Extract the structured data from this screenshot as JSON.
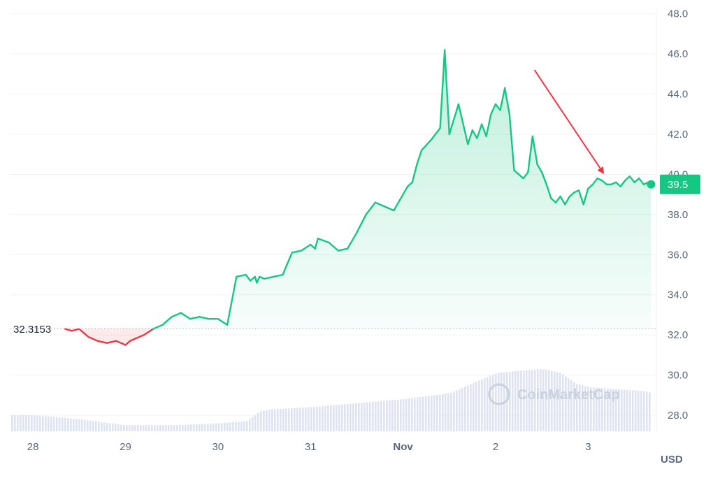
{
  "chart_data": {
    "type": "line",
    "currency_label": "USD",
    "watermark": "CoinMarketCap",
    "y_ticks": [
      "48.0",
      "46.0",
      "44.0",
      "42.0",
      "40.0",
      "38.0",
      "36.0",
      "34.0",
      "32.0",
      "30.0",
      "28.0"
    ],
    "y_tick_values": [
      48,
      46,
      44,
      42,
      40,
      38,
      36,
      34,
      32,
      30,
      28
    ],
    "x_ticks": [
      {
        "label": "28",
        "bold": false,
        "day": 0
      },
      {
        "label": "29",
        "bold": false,
        "day": 1
      },
      {
        "label": "30",
        "bold": false,
        "day": 2
      },
      {
        "label": "31",
        "bold": false,
        "day": 3
      },
      {
        "label": "Nov",
        "bold": true,
        "day": 4
      },
      {
        "label": "2",
        "bold": false,
        "day": 5
      },
      {
        "label": "3",
        "bold": false,
        "day": 6
      }
    ],
    "ylim": [
      27.2,
      48.2
    ],
    "xlim": [
      -0.25,
      6.73
    ],
    "baseline_value": 32.3153,
    "baseline_label": "32.3153",
    "current_value": 39.5,
    "current_label": "39.5",
    "colors": {
      "up": "#16c784",
      "down": "#ea3943",
      "annotation_arrow": "#ea3943"
    },
    "annotation_arrow": {
      "from": [
        5.42,
        45.2
      ],
      "to": [
        6.16,
        40.1
      ]
    },
    "series": [
      {
        "x": [
          0.35,
          0.42,
          0.5,
          0.55,
          0.6,
          0.7,
          0.8,
          0.9,
          1.0,
          1.05,
          1.1,
          1.2,
          1.3,
          1.4,
          1.5,
          1.6,
          1.7,
          1.8,
          1.9,
          2.0,
          2.1,
          2.2,
          2.3,
          2.35,
          2.4,
          2.42,
          2.45,
          2.5,
          2.6,
          2.7,
          2.8,
          2.9,
          3.0,
          3.05,
          3.08,
          3.2,
          3.3,
          3.4,
          3.5,
          3.6,
          3.7,
          3.8,
          3.9,
          4.0,
          4.05,
          4.1,
          4.15,
          4.2,
          4.3,
          4.4,
          4.45,
          4.5,
          4.6,
          4.7,
          4.75,
          4.8,
          4.85,
          4.9,
          4.95,
          5.0,
          5.05,
          5.1,
          5.15,
          5.2,
          5.3,
          5.35,
          5.4,
          5.45,
          5.5,
          5.55,
          5.6,
          5.65,
          5.7,
          5.75,
          5.8,
          5.85,
          5.9,
          5.95,
          6.0,
          6.05,
          6.1,
          6.15,
          6.2,
          6.25,
          6.3,
          6.35,
          6.4,
          6.45,
          6.5,
          6.55,
          6.6,
          6.65,
          6.68
        ],
        "y": [
          32.3,
          32.2,
          32.3,
          32.1,
          31.9,
          31.7,
          31.6,
          31.7,
          31.5,
          31.7,
          31.8,
          32.0,
          32.3,
          32.5,
          32.9,
          33.1,
          32.8,
          32.9,
          32.8,
          32.8,
          32.5,
          34.9,
          35.0,
          34.7,
          34.9,
          34.6,
          34.9,
          34.8,
          34.9,
          35.0,
          36.1,
          36.2,
          36.5,
          36.3,
          36.8,
          36.6,
          36.2,
          36.3,
          37.1,
          38.0,
          38.6,
          38.4,
          38.2,
          39.0,
          39.4,
          39.6,
          40.5,
          41.2,
          41.7,
          42.3,
          46.2,
          42.0,
          43.5,
          41.5,
          42.2,
          41.8,
          42.5,
          41.9,
          43.0,
          43.5,
          43.2,
          44.3,
          43.0,
          40.2,
          39.8,
          40.1,
          41.9,
          40.5,
          40.1,
          39.5,
          38.8,
          38.6,
          38.9,
          38.5,
          38.9,
          39.1,
          39.2,
          38.5,
          39.3,
          39.5,
          39.8,
          39.7,
          39.5,
          39.5,
          39.6,
          39.4,
          39.7,
          39.9,
          39.6,
          39.8,
          39.5,
          39.6,
          39.5
        ]
      }
    ],
    "volume": {
      "x": [
        0.0,
        0.5,
        1.0,
        1.5,
        2.0,
        2.3,
        2.45,
        2.6,
        3.0,
        3.5,
        4.0,
        4.5,
        4.8,
        5.0,
        5.2,
        5.5,
        5.7,
        5.85,
        6.0,
        6.3,
        6.6,
        6.68
      ],
      "y": [
        28.0,
        27.8,
        27.5,
        27.5,
        27.6,
        27.7,
        28.2,
        28.3,
        28.4,
        28.6,
        28.8,
        29.1,
        29.7,
        30.1,
        30.2,
        30.3,
        30.1,
        29.6,
        29.4,
        29.3,
        29.2,
        29.1
      ]
    }
  }
}
